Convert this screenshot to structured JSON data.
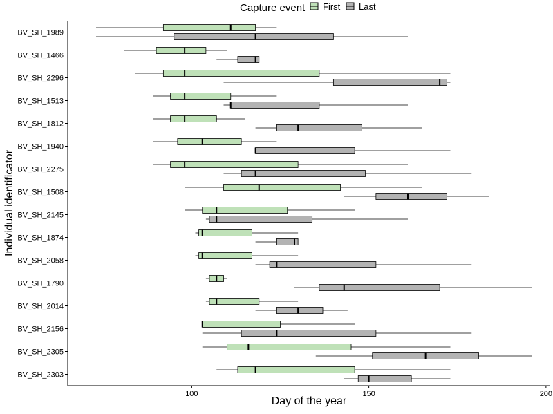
{
  "chart_data": {
    "type": "boxplot",
    "xlabel": "Day of the year",
    "ylabel": "Individual identificator",
    "xlim": [
      65,
      201
    ],
    "x_ticks": [
      100,
      150,
      200
    ],
    "grid": false,
    "legend": {
      "title": "Capture event",
      "placement": "top",
      "entries": [
        {
          "name": "First",
          "color": "#bfe1b8"
        },
        {
          "name": "Last",
          "color": "#b3b3b3"
        }
      ]
    },
    "categories": [
      "BV_SH_1989",
      "BV_SH_1466",
      "BV_SH_2296",
      "BV_SH_1513",
      "BV_SH_1812",
      "BV_SH_1940",
      "BV_SH_2275",
      "BV_SH_1508",
      "BV_SH_2145",
      "BV_SH_1874",
      "BV_SH_2058",
      "BV_SH_1790",
      "BV_SH_2014",
      "BV_SH_2156",
      "BV_SH_2305",
      "BV_SH_2303"
    ],
    "series": [
      {
        "name": "First",
        "color": "#bfe1b8",
        "boxes": [
          {
            "min": 73,
            "q1": 92,
            "median": 111,
            "q3": 118,
            "max": 124
          },
          {
            "min": 81,
            "q1": 90,
            "median": 98,
            "q3": 104,
            "max": 110
          },
          {
            "min": 84,
            "q1": 92,
            "median": 98,
            "q3": 136,
            "max": 173
          },
          {
            "min": 89,
            "q1": 94,
            "median": 98,
            "q3": 111,
            "max": 124
          },
          {
            "min": 89,
            "q1": 94,
            "median": 98,
            "q3": 107,
            "max": 115
          },
          {
            "min": 89,
            "q1": 96,
            "median": 103,
            "q3": 114,
            "max": 124
          },
          {
            "min": 89,
            "q1": 94,
            "median": 98,
            "q3": 130,
            "max": 161
          },
          {
            "min": 98,
            "q1": 109,
            "median": 119,
            "q3": 142,
            "max": 165
          },
          {
            "min": 98,
            "q1": 103,
            "median": 107,
            "q3": 127,
            "max": 146
          },
          {
            "min": 101,
            "q1": 102,
            "median": 103,
            "q3": 117,
            "max": 130
          },
          {
            "min": 101,
            "q1": 102,
            "median": 103,
            "q3": 117,
            "max": 130
          },
          {
            "min": 104,
            "q1": 105,
            "median": 107,
            "q3": 109,
            "max": 110
          },
          {
            "min": 104,
            "q1": 105,
            "median": 107,
            "q3": 119,
            "max": 130
          },
          {
            "min": 103,
            "q1": 103,
            "median": 103,
            "q3": 125,
            "max": 146
          },
          {
            "min": 103,
            "q1": 110,
            "median": 116,
            "q3": 145,
            "max": 173
          },
          {
            "min": 107,
            "q1": 113,
            "median": 118,
            "q3": 146,
            "max": 173
          }
        ]
      },
      {
        "name": "Last",
        "color": "#b3b3b3",
        "boxes": [
          {
            "min": 73,
            "q1": 95,
            "median": 118,
            "q3": 140,
            "max": 161
          },
          {
            "min": 107,
            "q1": 113,
            "median": 118,
            "q3": 119,
            "max": 119
          },
          {
            "min": 109,
            "q1": 140,
            "median": 170,
            "q3": 172,
            "max": 173
          },
          {
            "min": 109,
            "q1": 111,
            "median": 111,
            "q3": 136,
            "max": 161
          },
          {
            "min": 118,
            "q1": 124,
            "median": 130,
            "q3": 148,
            "max": 165
          },
          {
            "min": 118,
            "q1": 118,
            "median": 118,
            "q3": 146,
            "max": 173
          },
          {
            "min": 109,
            "q1": 114,
            "median": 118,
            "q3": 149,
            "max": 179
          },
          {
            "min": 143,
            "q1": 152,
            "median": 161,
            "q3": 172,
            "max": 184
          },
          {
            "min": 104,
            "q1": 105,
            "median": 107,
            "q3": 134,
            "max": 161
          },
          {
            "min": 118,
            "q1": 124,
            "median": 129,
            "q3": 130,
            "max": 130
          },
          {
            "min": 118,
            "q1": 122,
            "median": 124,
            "q3": 152,
            "max": 179
          },
          {
            "min": 129,
            "q1": 136,
            "median": 143,
            "q3": 170,
            "max": 196
          },
          {
            "min": 118,
            "q1": 124,
            "median": 130,
            "q3": 137,
            "max": 144
          },
          {
            "min": 103,
            "q1": 114,
            "median": 124,
            "q3": 152,
            "max": 179
          },
          {
            "min": 135,
            "q1": 151,
            "median": 166,
            "q3": 181,
            "max": 196
          },
          {
            "min": 143,
            "q1": 147,
            "median": 150,
            "q3": 162,
            "max": 173
          }
        ]
      }
    ]
  }
}
